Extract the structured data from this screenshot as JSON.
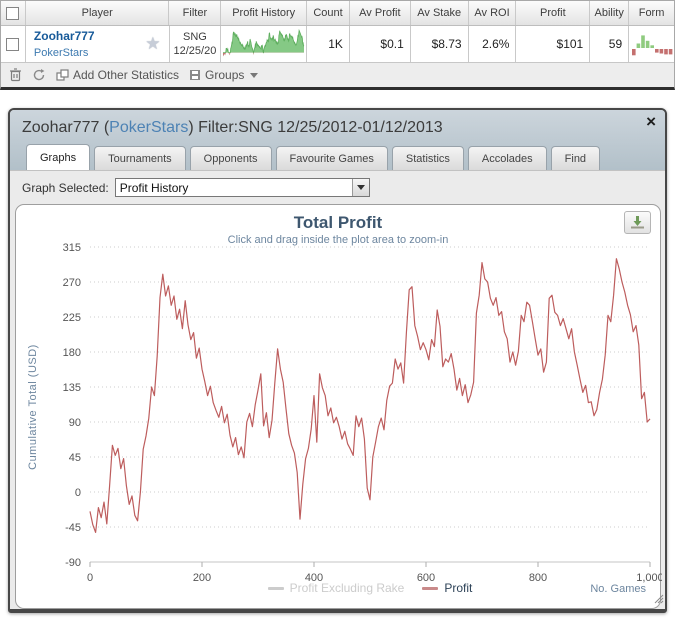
{
  "table": {
    "columns": [
      "Player",
      "Filter",
      "Profit History",
      "Count",
      "Av Profit",
      "Av Stake",
      "Av ROI",
      "Profit",
      "Ability",
      "Form"
    ],
    "row": {
      "player": "Zoohar777",
      "site": "PokerStars",
      "star_glyph": "★",
      "filter_line1": "SNG",
      "filter_line2": "12/25/20",
      "count": "1K",
      "av_profit": "$0.1",
      "av_stake": "$8.73",
      "av_roi": "2.6%",
      "profit": "$101",
      "ability": "59",
      "form_bars": [
        -7,
        5,
        14,
        8,
        3,
        -4,
        -5,
        -6,
        -6
      ],
      "spark_green": "#85c985",
      "spark_green_edge": "#5fae5f",
      "spark_red": "#c47574",
      "form_green": "#8fcb7f",
      "form_red": "#c4706f"
    },
    "toolbar": {
      "add_label": "Add Other Statistics",
      "groups_label": "Groups"
    }
  },
  "window": {
    "title_name": "Zoohar777 (",
    "title_site": "PokerStars",
    "title_rest": ") Filter:SNG 12/25/2012-01/12/2013",
    "close_glyph": "×",
    "tabs": [
      {
        "label": "Graphs",
        "active": true
      },
      {
        "label": "Tournaments",
        "active": false
      },
      {
        "label": "Opponents",
        "active": false
      },
      {
        "label": "Favourite Games",
        "active": false
      },
      {
        "label": "Statistics",
        "active": false
      },
      {
        "label": "Accolades",
        "active": false
      },
      {
        "label": "Find",
        "active": false
      }
    ],
    "graph_selected_label": "Graph Selected:",
    "graph_selected_value": "Profit History"
  },
  "chart_data": {
    "type": "line",
    "title": "Total Profit",
    "subtitle": "Click and drag inside the plot area to zoom-in",
    "ylabel": "Cumulative Total (USD)",
    "xlabel": "No. Games",
    "ylim": [
      -90,
      315
    ],
    "xlim": [
      0,
      1000
    ],
    "yticks": [
      315,
      270,
      225,
      180,
      135,
      90,
      45,
      0,
      -45,
      -90
    ],
    "xticks": [
      "0",
      "200",
      "400",
      "600",
      "800",
      "1,000"
    ],
    "xtick_values": [
      0,
      200,
      400,
      600,
      800,
      1000
    ],
    "grid": "dotted-horizontal",
    "legend_position": "bottom-center",
    "x_start": 0,
    "x_step": 5,
    "series": [
      {
        "name": "Profit Excluding Rake",
        "color": "#cccccc",
        "visible": false,
        "values": []
      },
      {
        "name": "Profit",
        "color": "#bd5d5d",
        "visible": true,
        "values": [
          -25,
          -42,
          -52,
          -20,
          -33,
          -13,
          -41,
          8,
          60,
          47,
          56,
          30,
          43,
          8,
          -16,
          -5,
          -30,
          -37,
          0,
          55,
          72,
          95,
          135,
          124,
          175,
          250,
          280,
          252,
          265,
          240,
          252,
          222,
          235,
          210,
          246,
          215,
          196,
          205,
          172,
          185,
          158,
          142,
          124,
          136,
          115,
          105,
          96,
          110,
          89,
          100,
          73,
          58,
          70,
          48,
          58,
          44,
          90,
          101,
          84,
          112,
          131,
          152,
          85,
          102,
          70,
          92,
          140,
          184,
          158,
          141,
          107,
          75,
          60,
          50,
          25,
          -35,
          10,
          43,
          56,
          81,
          124,
          64,
          152,
          134,
          124,
          98,
          108,
          89,
          96,
          84,
          68,
          78,
          62,
          55,
          47,
          98,
          84,
          95,
          68,
          5,
          -10,
          45,
          64,
          84,
          95,
          80,
          118,
          136,
          140,
          171,
          158,
          166,
          140,
          205,
          260,
          264,
          214,
          200,
          183,
          192,
          183,
          170,
          196,
          187,
          234,
          213,
          161,
          171,
          167,
          178,
          158,
          131,
          146,
          124,
          138,
          115,
          125,
          141,
          230,
          253,
          295,
          274,
          270,
          249,
          240,
          250,
          227,
          232,
          206,
          197,
          167,
          180,
          163,
          181,
          227,
          219,
          244,
          240,
          219,
          197,
          176,
          184,
          154,
          167,
          249,
          253,
          231,
          227,
          214,
          223,
          210,
          197,
          210,
          180,
          163,
          145,
          128,
          137,
          115,
          116,
          98,
          106,
          128,
          145,
          176,
          227,
          219,
          253,
          300,
          287,
          270,
          257,
          240,
          228,
          206,
          214,
          189,
          120,
          128,
          90,
          94
        ]
      }
    ],
    "legend_text_color": "#2d4257",
    "legend_disabled_color": "#cccccc"
  }
}
